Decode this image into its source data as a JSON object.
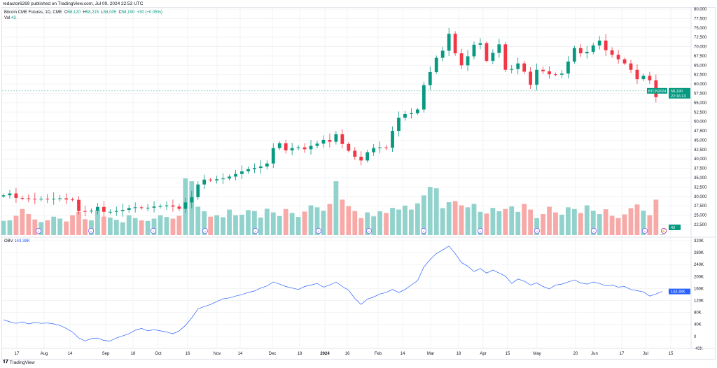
{
  "header": {
    "published": "redactor6269 published on TradingView.com, Jul 09, 2024 22:53 UTC"
  },
  "legend": {
    "symbol": "Bitcoin CME Futures, 1D, CME",
    "o_label": "O",
    "o": "58,120",
    "h_label": "H",
    "h": "58,215",
    "l_label": "L",
    "l": "58,005",
    "c_label": "C",
    "c": "58,190",
    "change": "+30 (+0.05%)",
    "vol_label": "Vol",
    "vol": "43"
  },
  "obv_legend": {
    "label": "OBV",
    "value": "143.38K"
  },
  "price_tag": {
    "ticker": "BTCN2024",
    "price": "58,190",
    "countdown": "22:16:13"
  },
  "volume_tag": "43",
  "obv_tag": "143.38K",
  "footer": {
    "brand": "TradingView"
  },
  "colors": {
    "up": "#089981",
    "down": "#f23645",
    "vol_up": "#92d2cc",
    "vol_down": "#f7a9a7",
    "obv": "#2962ff",
    "event": "#9c27b0"
  },
  "chart_data": [
    {
      "type": "candlestick",
      "title": "Bitcoin CME Futures, 1D, CME",
      "ylim": [
        21000,
        80000
      ],
      "y_ticks": [
        "80,000",
        "77,500",
        "75,000",
        "72,500",
        "70,000",
        "67,500",
        "65,000",
        "62,500",
        "60,000",
        "57,500",
        "55,000",
        "52,500",
        "50,000",
        "47,500",
        "45,000",
        "42,500",
        "40,000",
        "37,500",
        "35,000",
        "32,500",
        "30,000",
        "27,500",
        "25,000",
        "22,500"
      ],
      "x_ticks": [
        "17",
        "Aug",
        "14",
        "Sep",
        "18",
        "Oct",
        "16",
        "Nov",
        "14",
        "Dec",
        "18",
        "2024",
        "16",
        "Feb",
        "14",
        "Mar",
        "18",
        "Apr",
        "15",
        "May",
        "20",
        "Jun",
        "17",
        "Jul",
        "15"
      ],
      "grid": true,
      "closes": [
        30300,
        30800,
        29600,
        29500,
        29400,
        29300,
        29400,
        29300,
        29400,
        29500,
        29200,
        29100,
        26100,
        26000,
        26200,
        27200,
        25900,
        25900,
        26100,
        26400,
        26900,
        27100,
        26900,
        27000,
        27300,
        27400,
        27600,
        27300,
        26700,
        28400,
        29800,
        33200,
        34500,
        34300,
        34600,
        34800,
        35300,
        36000,
        36700,
        37300,
        37600,
        38000,
        38800,
        42900,
        44200,
        42300,
        42900,
        43100,
        42600,
        43500,
        44100,
        45100,
        44600,
        46600,
        44000,
        42200,
        40600,
        39600,
        41800,
        42900,
        43100,
        43000,
        47500,
        51000,
        52000,
        52200,
        53200,
        59700,
        63200,
        67000,
        68900,
        73400,
        68200,
        65000,
        67400,
        70500,
        70900,
        66200,
        68300,
        70600,
        63800,
        64000,
        65500,
        63300,
        59800,
        63800,
        63400,
        62600,
        62500,
        62800,
        66000,
        69600,
        68200,
        68600,
        70300,
        71600,
        69000,
        67800,
        66600,
        65500,
        63800,
        61300,
        62200,
        61000,
        56500,
        58190
      ],
      "volume": [
        5000,
        5200,
        6800,
        9200,
        7400,
        5500,
        4600,
        5200,
        6500,
        5800,
        4800,
        7000,
        8200,
        5600,
        5200,
        8800,
        6500,
        6200,
        5400,
        4500,
        7000,
        6000,
        5200,
        5000,
        5800,
        7000,
        6400,
        5800,
        6800,
        20000,
        19000,
        10000,
        8400,
        6500,
        7000,
        6300,
        9000,
        7000,
        7200,
        8800,
        8500,
        6200,
        9300,
        8000,
        6700,
        9200,
        7800,
        6400,
        8300,
        10500,
        9800,
        8600,
        11000,
        19000,
        12500,
        10200,
        8500,
        6000,
        8000,
        6600,
        8400,
        7800,
        9600,
        9000,
        10400,
        9000,
        11200,
        14000,
        17000,
        16500,
        9500,
        11600,
        12000,
        10500,
        9800,
        11000,
        8200,
        7600,
        9600,
        8400,
        9200,
        10100,
        8200,
        11000,
        9000,
        6000,
        7400,
        10000,
        8000,
        7200,
        9800,
        9200,
        7800,
        10500,
        8600,
        7400,
        9100,
        6800,
        6000,
        7300,
        9500,
        10800,
        8600,
        7000,
        12500,
        43
      ],
      "obv_ylim": [
        -40000,
        320000
      ],
      "obv_ticks": [
        "320K",
        "280K",
        "240K",
        "200K",
        "160K",
        "120K",
        "80K",
        "40K",
        "0",
        "-40K"
      ],
      "obv": [
        49000,
        42000,
        37000,
        42000,
        35000,
        40000,
        37000,
        38000,
        35000,
        30000,
        20000,
        8000,
        -12000,
        -22000,
        -14000,
        -12000,
        -20000,
        -22000,
        -12000,
        -5000,
        2000,
        14000,
        20000,
        12000,
        16000,
        12000,
        8000,
        2000,
        12000,
        30000,
        55000,
        85000,
        93000,
        100000,
        110000,
        119000,
        122000,
        128000,
        133000,
        140000,
        145000,
        155000,
        162000,
        175000,
        168000,
        160000,
        155000,
        150000,
        160000,
        165000,
        170000,
        158000,
        165000,
        175000,
        160000,
        148000,
        120000,
        100000,
        118000,
        125000,
        135000,
        140000,
        150000,
        140000,
        150000,
        165000,
        180000,
        225000,
        250000,
        270000,
        282000,
        295000,
        270000,
        240000,
        228000,
        210000,
        220000,
        205000,
        215000,
        205000,
        195000,
        170000,
        185000,
        178000,
        165000,
        172000,
        160000,
        152000,
        165000,
        168000,
        175000,
        182000,
        172000,
        168000,
        175000,
        170000,
        162000,
        165000,
        158000,
        160000,
        150000,
        146000,
        142000,
        128000,
        135000,
        143380
      ]
    }
  ]
}
